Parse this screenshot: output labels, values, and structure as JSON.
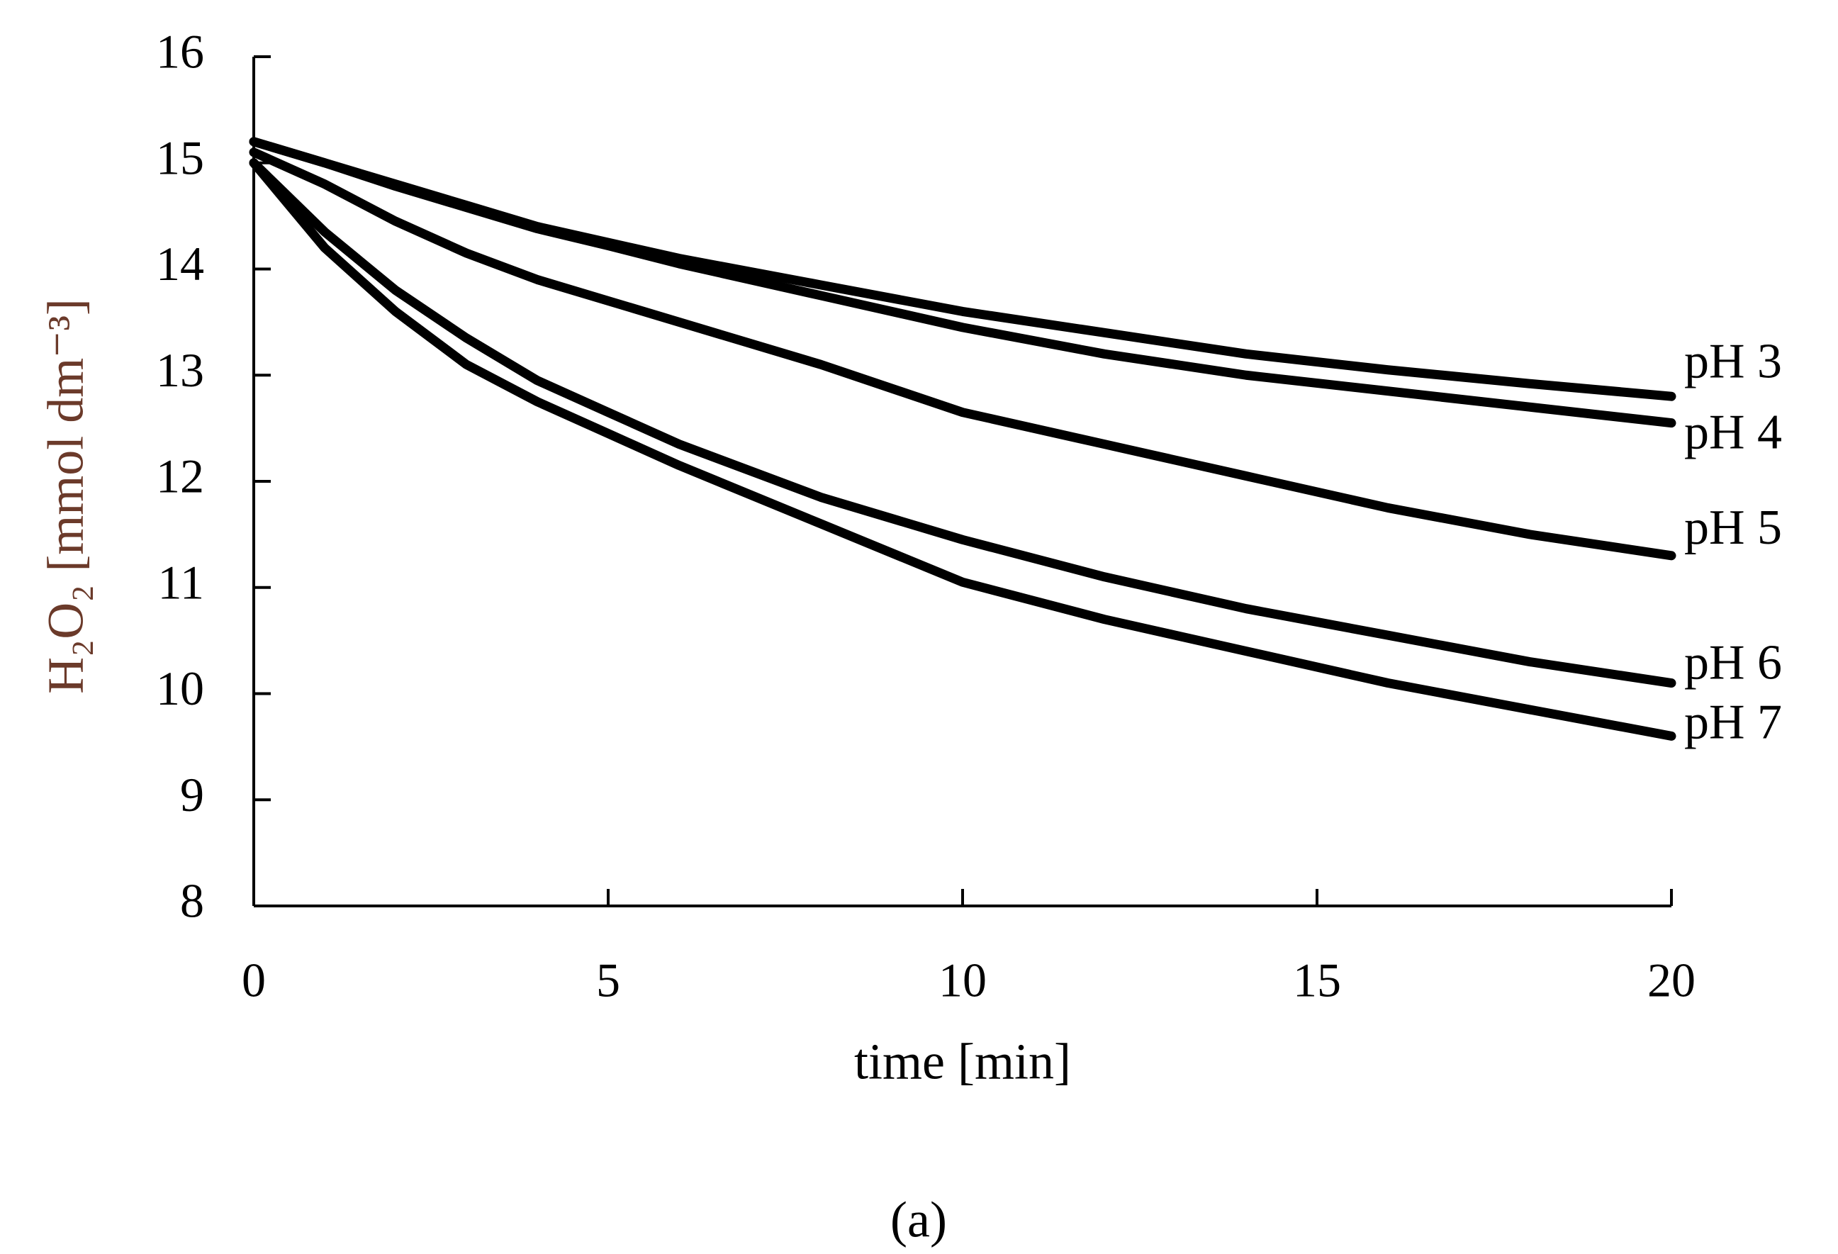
{
  "chart_data": {
    "type": "line",
    "xlabel": "time  [min]",
    "ylabel": "H₂O₂ [mmol  dm⁻³]",
    "caption": "(a)",
    "x": [
      0,
      1,
      2,
      3,
      4,
      5,
      6,
      8,
      10,
      12,
      14,
      16,
      18,
      20
    ],
    "series": [
      {
        "name": "pH 3",
        "color": "#000000",
        "values": [
          15.2,
          15.0,
          14.8,
          14.6,
          14.4,
          14.25,
          14.1,
          13.85,
          13.6,
          13.4,
          13.2,
          13.05,
          12.92,
          12.8
        ]
      },
      {
        "name": "pH 4",
        "color": "#000000",
        "values": [
          15.2,
          15.0,
          14.78,
          14.58,
          14.38,
          14.22,
          14.05,
          13.75,
          13.45,
          13.2,
          13.0,
          12.85,
          12.7,
          12.55
        ]
      },
      {
        "name": "pH 5",
        "color": "#000000",
        "values": [
          15.1,
          14.8,
          14.45,
          14.15,
          13.9,
          13.7,
          13.5,
          13.1,
          12.65,
          12.35,
          12.05,
          11.75,
          11.5,
          11.3
        ]
      },
      {
        "name": "pH 6",
        "color": "#000000",
        "values": [
          15.0,
          14.35,
          13.8,
          13.35,
          12.95,
          12.65,
          12.35,
          11.85,
          11.45,
          11.1,
          10.8,
          10.55,
          10.3,
          10.1
        ]
      },
      {
        "name": "pH 7",
        "color": "#000000",
        "values": [
          15.0,
          14.2,
          13.6,
          13.1,
          12.75,
          12.45,
          12.15,
          11.6,
          11.05,
          10.7,
          10.4,
          10.1,
          9.85,
          9.6
        ]
      }
    ],
    "xlim": [
      0,
      20
    ],
    "xticks": [
      0,
      5,
      10,
      15,
      20
    ],
    "ylim": [
      8,
      16
    ],
    "yticks": [
      8,
      9,
      10,
      11,
      12,
      13,
      14,
      15,
      16
    ],
    "grid": false
  }
}
